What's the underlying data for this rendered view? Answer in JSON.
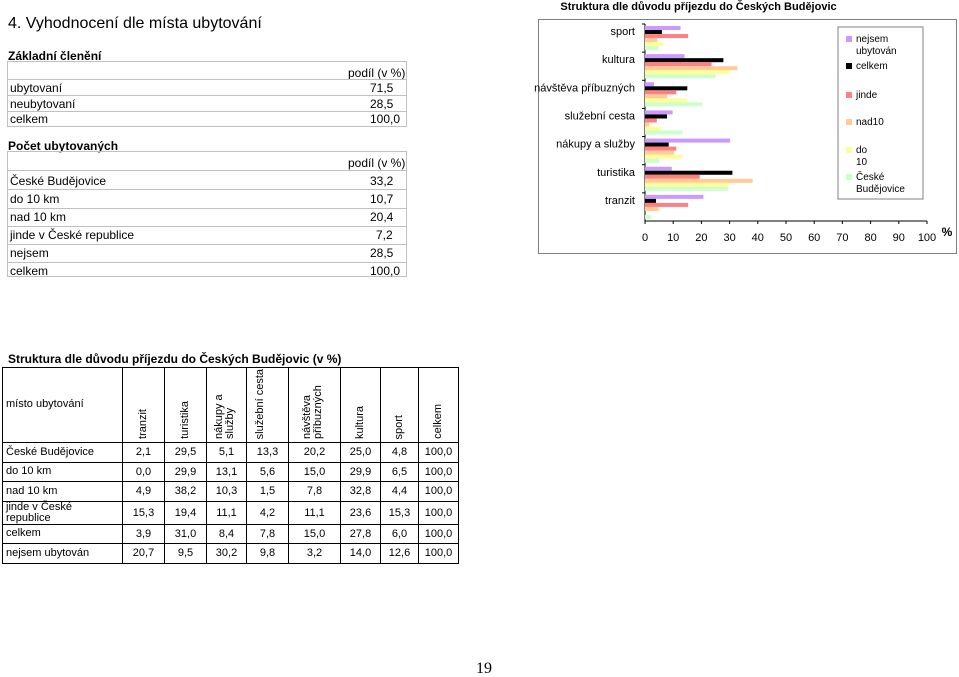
{
  "section": {
    "title": "4. Vyhodnocení dle místa ubytování"
  },
  "basic": {
    "heading": "Základní členění",
    "col_header": "podíl (v %)",
    "rows": [
      {
        "label": "ubytovaní",
        "value": "71,5"
      },
      {
        "label": "neubytovaní",
        "value": "28,5"
      },
      {
        "label": "celkem",
        "value": "100,0"
      }
    ]
  },
  "accommodated": {
    "heading": "Počet ubytovaných",
    "col_header": "podíl (v %)",
    "rows": [
      {
        "label": "České Budějovice",
        "value": "33,2"
      },
      {
        "label": "do 10 km",
        "value": "10,7"
      },
      {
        "label": "nad 10 km",
        "value": "20,4"
      },
      {
        "label": "jinde v České republice",
        "value": "7,2"
      },
      {
        "label": "nejsem",
        "value": "28,5"
      },
      {
        "label": "celkem",
        "value": "100,0"
      }
    ]
  },
  "colors": {
    "nejsem_ubytovan": "#CC99FF",
    "celkem": "#000000",
    "jinde": "#FF8080",
    "nad10": "#FFCC99",
    "do10": "#FFFF99",
    "ceske_budejovice": "#CCFFCC"
  },
  "chart_data": {
    "type": "bar",
    "orientation": "horizontal",
    "title": "Struktura dle důvodu příjezdu do Českých Budějovic",
    "categories": [
      "sport",
      "kultura",
      "návštěva příbuzných",
      "služební cesta",
      "nákupy a služby",
      "turistika",
      "tranzit"
    ],
    "series": [
      {
        "name": "nejsem ubytován",
        "color": "#CC99FF",
        "values": [
          12.6,
          14.0,
          3.2,
          9.8,
          30.2,
          9.5,
          20.7
        ]
      },
      {
        "name": "celkem",
        "color": "#000000",
        "values": [
          6.0,
          27.8,
          15.0,
          7.8,
          8.4,
          31.0,
          3.9
        ]
      },
      {
        "name": "jinde",
        "color": "#FF8080",
        "values": [
          15.3,
          23.6,
          11.1,
          4.2,
          11.1,
          19.4,
          15.3
        ]
      },
      {
        "name": "nad10",
        "color": "#FFCC99",
        "values": [
          4.4,
          32.8,
          7.8,
          1.5,
          10.3,
          38.2,
          4.9
        ]
      },
      {
        "name": "do 10",
        "color": "#FFFF99",
        "values": [
          6.5,
          29.9,
          15.0,
          5.6,
          13.1,
          29.9,
          0.0
        ]
      },
      {
        "name": "České Budějovice",
        "color": "#CCFFCC",
        "values": [
          4.8,
          25.0,
          20.2,
          13.3,
          5.1,
          29.5,
          2.1
        ]
      }
    ],
    "x_ticks": [
      "0",
      "10",
      "20",
      "30",
      "40",
      "50",
      "60",
      "70",
      "80",
      "90",
      "100"
    ],
    "x_unit": "%",
    "xlim": [
      0,
      100
    ],
    "legend": [
      "nejsem ubytován",
      "celkem",
      "jinde",
      "nad10",
      "do 10",
      "České Budějovice"
    ],
    "legend_position": "right",
    "grid": false
  },
  "table": {
    "title": "Struktura dle důvodu příjezdu do Českých Budějovic (v %)",
    "corner_label": "místo ubytování",
    "columns": [
      "tranzit",
      "turistika",
      "nákupy a služby",
      "služební cesta",
      "návštěva příbuzných",
      "kultura",
      "sport",
      "celkem"
    ],
    "rows": [
      {
        "label": "České Budějovice",
        "values": [
          "2,1",
          "29,5",
          "5,1",
          "13,3",
          "20,2",
          "25,0",
          "4,8",
          "100,0"
        ]
      },
      {
        "label": "do 10 km",
        "values": [
          "0,0",
          "29,9",
          "13,1",
          "5,6",
          "15,0",
          "29,9",
          "6,5",
          "100,0"
        ]
      },
      {
        "label": "nad 10 km",
        "values": [
          "4,9",
          "38,2",
          "10,3",
          "1,5",
          "7,8",
          "32,8",
          "4,4",
          "100,0"
        ]
      },
      {
        "label": "jinde v České republice",
        "values": [
          "15,3",
          "19,4",
          "11,1",
          "4,2",
          "11,1",
          "23,6",
          "15,3",
          "100,0"
        ]
      },
      {
        "label": "celkem",
        "values": [
          "3,9",
          "31,0",
          "8,4",
          "7,8",
          "15,0",
          "27,8",
          "6,0",
          "100,0"
        ]
      },
      {
        "label": "nejsem ubytován",
        "values": [
          "20,7",
          "9,5",
          "30,2",
          "9,8",
          "3,2",
          "14,0",
          "12,6",
          "100,0"
        ]
      }
    ]
  },
  "page_number": "19"
}
